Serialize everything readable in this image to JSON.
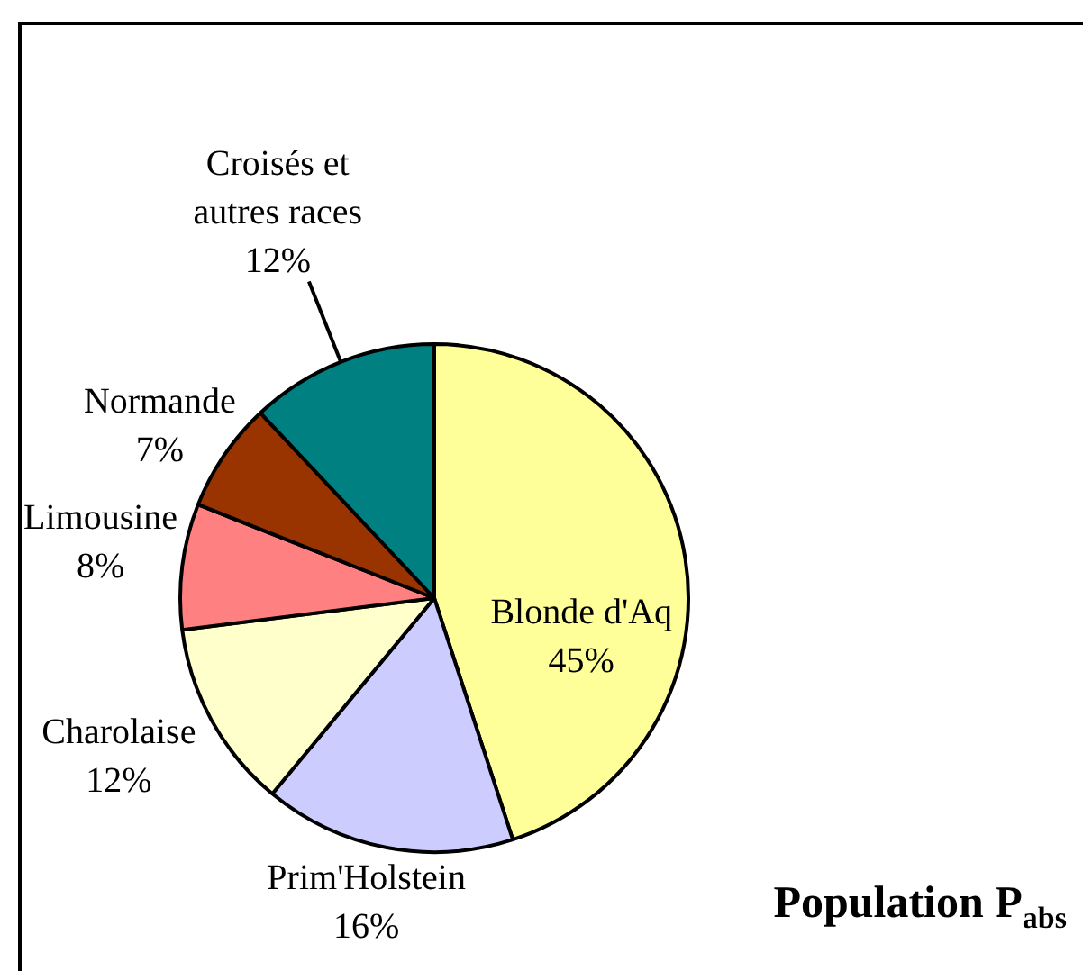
{
  "chart_data": {
    "type": "pie",
    "title": "Population P$_{abs}$",
    "categories": [
      "Blonde d'Aq",
      "Prim'Holstein",
      "Charolaise",
      "Limousine",
      "Normande",
      "Croisés et autres races"
    ],
    "values": [
      45,
      16,
      12,
      8,
      7,
      12
    ],
    "value_labels": [
      "45%",
      "16%",
      "12%",
      "8%",
      "7%",
      "12%"
    ],
    "colors": [
      "#ffff99",
      "#ccccff",
      "#ffffcc",
      "#ff8080",
      "#993300",
      "#008080"
    ],
    "legend": false
  }
}
